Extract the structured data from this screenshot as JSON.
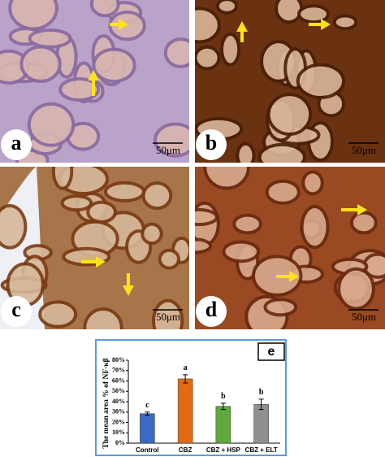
{
  "panels": [
    {
      "label": "a",
      "scale": "50μm"
    },
    {
      "label": "b",
      "scale": "50μm"
    },
    {
      "label": "c",
      "scale": "50μm"
    },
    {
      "label": "d",
      "scale": "50μm"
    }
  ],
  "chart_data": {
    "type": "bar",
    "panel_label": "e",
    "y_label": "The mean area % of NF-κβ",
    "categories": [
      "Control",
      "CBZ",
      "CBZ + HSP",
      "CBZ + ELT"
    ],
    "values": [
      28.5,
      62,
      35.5,
      37.5
    ],
    "errors": [
      1.5,
      4,
      3,
      5
    ],
    "group_labels": [
      "c",
      "a",
      "b",
      "b"
    ],
    "colors": [
      "#3a6bc4",
      "#e36a12",
      "#5fa83c",
      "#8f8f8f"
    ],
    "ylim": [
      0,
      80
    ],
    "yticks": [
      {
        "value": 0,
        "label": "0%"
      },
      {
        "value": 10,
        "label": "10%"
      },
      {
        "value": 20,
        "label": "20%"
      },
      {
        "value": 30,
        "label": "30%"
      },
      {
        "value": 40,
        "label": "40%"
      },
      {
        "value": 50,
        "label": "50%"
      },
      {
        "value": 60,
        "label": "60%"
      },
      {
        "value": 70,
        "label": "70%"
      },
      {
        "value": 80,
        "label": "80%"
      }
    ]
  }
}
